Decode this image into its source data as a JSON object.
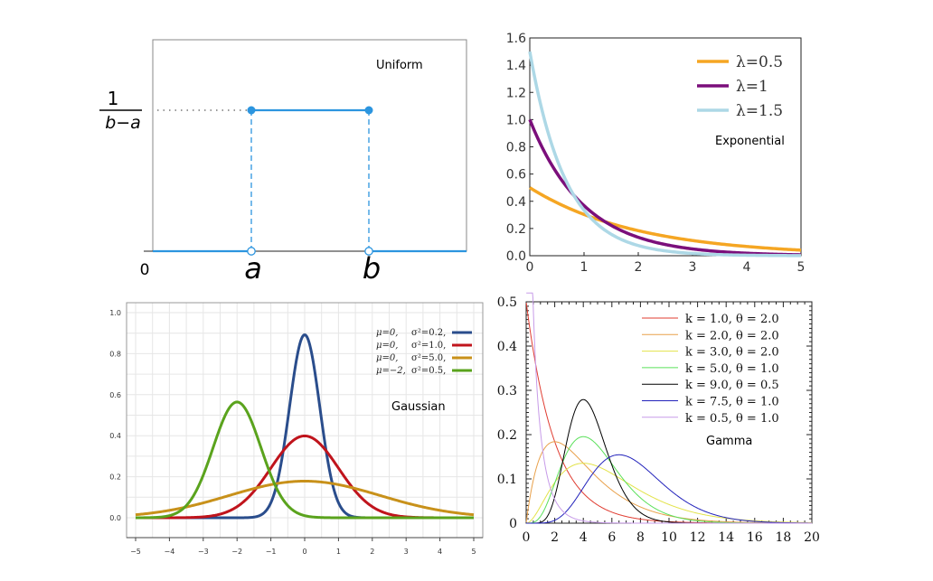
{
  "chart_data": [
    {
      "type": "line",
      "title": "Uniform",
      "x_labels": {
        "origin": "0",
        "a": "a",
        "b": "b"
      },
      "y_label": {
        "numerator": "1",
        "denominator": "b−a"
      },
      "series": [
        {
          "values": [
            {
              "x": "a",
              "y": "1/(b−a)"
            },
            {
              "x": "b",
              "y": "1/(b−a)"
            }
          ]
        }
      ],
      "colors": {
        "line": "#2c95df"
      }
    },
    {
      "type": "line",
      "title": "Exponential",
      "xlim": [
        0,
        5
      ],
      "ylim": [
        0,
        1.6
      ],
      "xticks": [
        "0",
        "1",
        "2",
        "3",
        "4",
        "5"
      ],
      "yticks": [
        "0.0",
        "0.2",
        "0.4",
        "0.6",
        "0.8",
        "1.0",
        "1.2",
        "1.4",
        "1.6"
      ],
      "legend_position": "top-right",
      "series": [
        {
          "name": "λ=0.5",
          "lambda": 0.5,
          "color": "#f5a623"
        },
        {
          "name": "λ=1",
          "lambda": 1,
          "color": "#7b0f7b"
        },
        {
          "name": "λ=1.5",
          "lambda": 1.5,
          "color": "#add8e6"
        }
      ]
    },
    {
      "type": "line",
      "title": "Gaussian",
      "xlim": [
        -5,
        5
      ],
      "ylim": [
        0,
        1.0
      ],
      "xticks": [
        "−5",
        "−4",
        "−3",
        "−2",
        "−1",
        "0",
        "1",
        "2",
        "3",
        "4",
        "5"
      ],
      "yticks": [
        "0.0",
        "0.2",
        "0.4",
        "0.6",
        "0.8",
        "1.0"
      ],
      "legend_position": "top-right",
      "grid": true,
      "series": [
        {
          "mu": "μ=0,",
          "var": "σ²=0.2,",
          "mean": 0,
          "variance": 0.2,
          "color": "#2a4d8c"
        },
        {
          "mu": "μ=0,",
          "var": "σ²=1.0,",
          "mean": 0,
          "variance": 1.0,
          "color": "#c0141c"
        },
        {
          "mu": "μ=0,",
          "var": "σ²=5.0,",
          "mean": 0,
          "variance": 5.0,
          "color": "#c8911a"
        },
        {
          "mu": "μ=−2,",
          "var": "σ²=0.5,",
          "mean": -2,
          "variance": 0.5,
          "color": "#5aa31d"
        }
      ]
    },
    {
      "type": "line",
      "title": "Gamma",
      "xlim": [
        0,
        20
      ],
      "ylim": [
        0,
        0.5
      ],
      "xticks": [
        "0",
        "2",
        "4",
        "6",
        "8",
        "10",
        "12",
        "14",
        "16",
        "18",
        "20"
      ],
      "yticks": [
        "0",
        "0.1",
        "0.2",
        "0.3",
        "0.4",
        "0.5"
      ],
      "legend_position": "top-right",
      "series": [
        {
          "name": "k = 1.0, θ = 2.0",
          "k": 1.0,
          "theta": 2.0,
          "color": "#e03c31"
        },
        {
          "name": "k = 2.0, θ = 2.0",
          "k": 2.0,
          "theta": 2.0,
          "color": "#e8a04a"
        },
        {
          "name": "k = 3.0, θ = 2.0",
          "k": 3.0,
          "theta": 2.0,
          "color": "#e3e34a"
        },
        {
          "name": "k = 5.0, θ = 1.0",
          "k": 5.0,
          "theta": 1.0,
          "color": "#5ae05a"
        },
        {
          "name": "k = 9.0, θ = 0.5",
          "k": 9.0,
          "theta": 0.5,
          "color": "#000000"
        },
        {
          "name": "k = 7.5, θ = 1.0",
          "k": 7.5,
          "theta": 1.0,
          "color": "#2222bb"
        },
        {
          "name": "k = 0.5, θ = 1.0",
          "k": 0.5,
          "theta": 1.0,
          "color": "#c79be8"
        }
      ]
    }
  ]
}
